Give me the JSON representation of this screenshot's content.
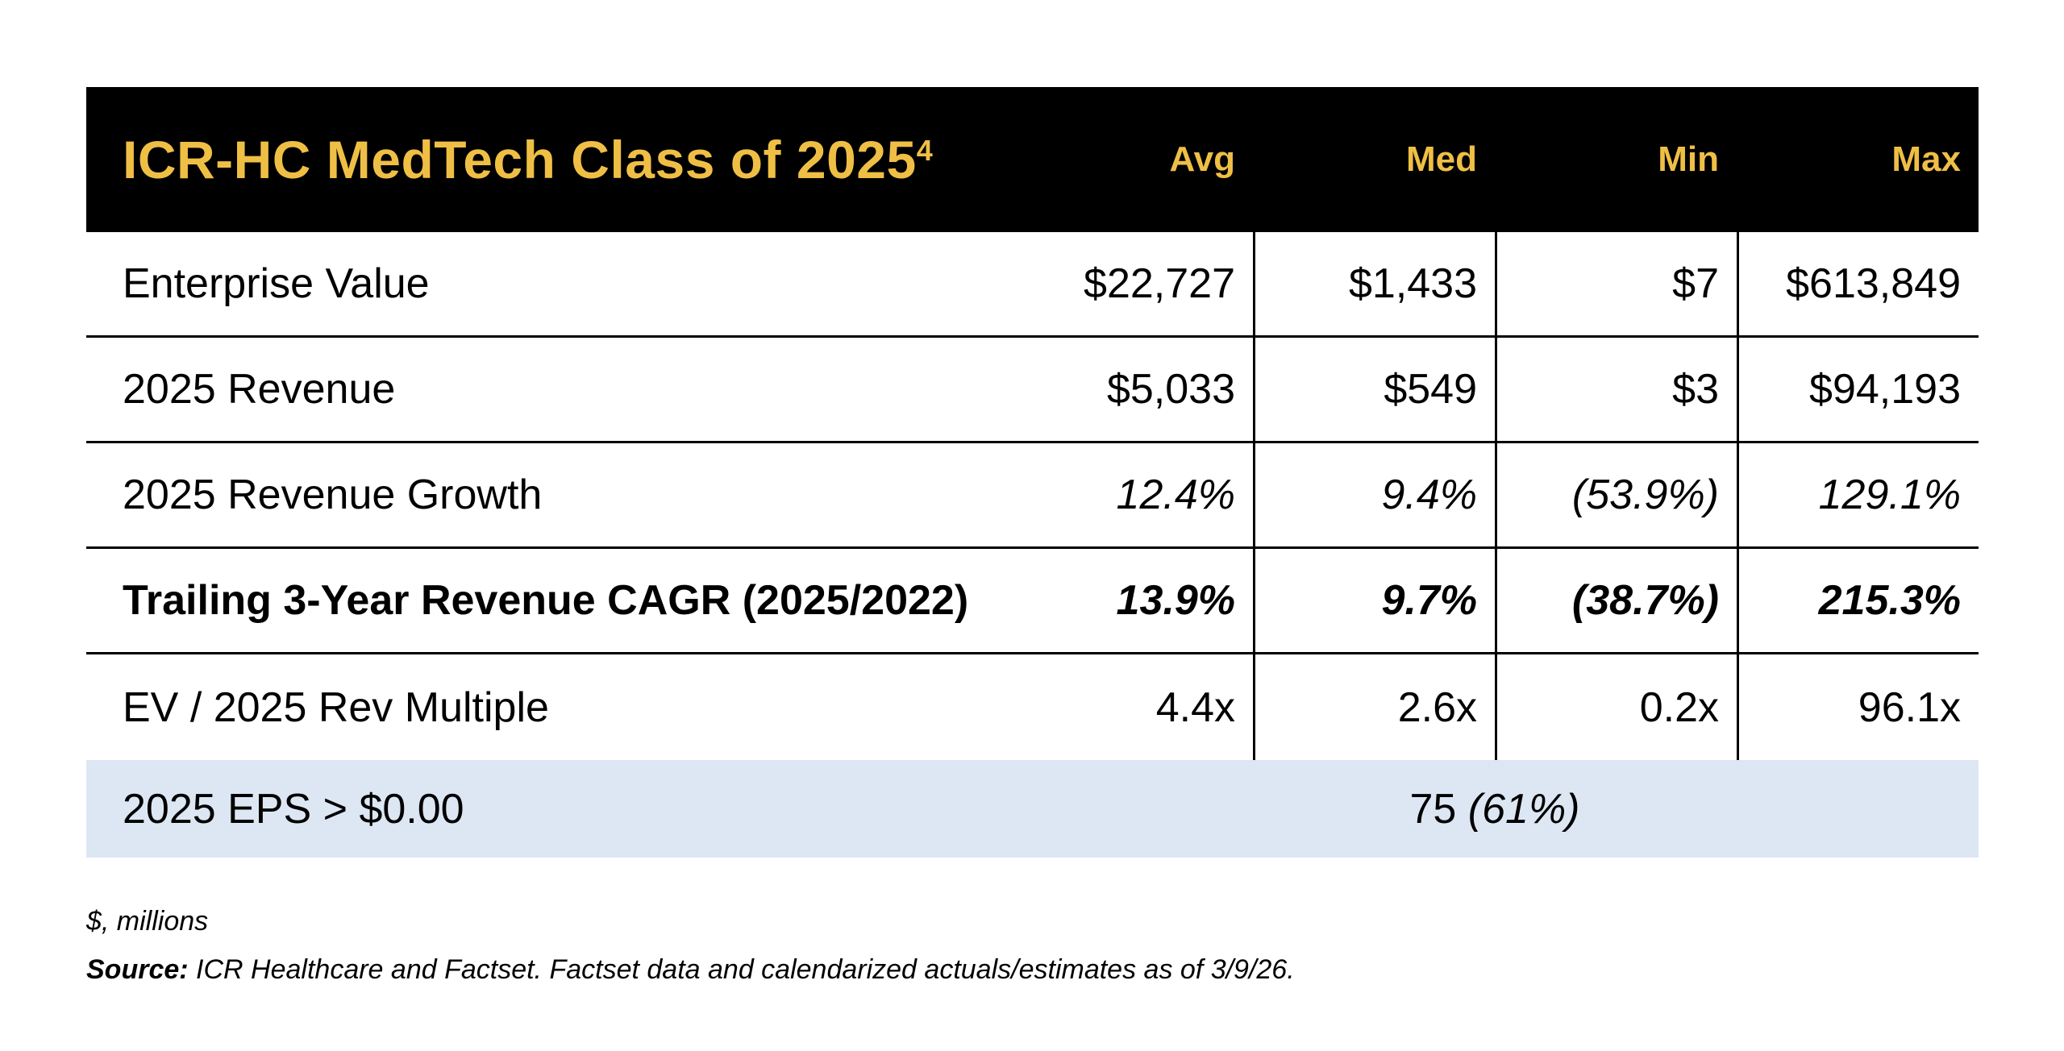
{
  "colors": {
    "page_bg": "#FFFFFF",
    "header_bg": "#000000",
    "accent_gold": "#EFBF45",
    "summary_row_bg": "#DCE7F3",
    "text": "#000000",
    "grid_line": "#000000"
  },
  "chart_data": {
    "type": "table",
    "title": "ICR-HC MedTech Class of 2025",
    "title_superscript": "4",
    "columns": [
      "Avg",
      "Med",
      "Min",
      "Max"
    ],
    "rows": [
      {
        "label": "Enterprise Value",
        "values": [
          "$22,727",
          "$1,433",
          "$7",
          "$613,849"
        ]
      },
      {
        "label": "2025 Revenue",
        "values": [
          "$5,033",
          "$549",
          "$3",
          "$94,193"
        ]
      },
      {
        "label": "2025 Revenue Growth",
        "values": [
          "12.4%",
          "9.4%",
          "(53.9%)",
          "129.1%"
        ]
      },
      {
        "label": "Trailing 3-Year Revenue CAGR (2025/2022)",
        "values": [
          "13.9%",
          "9.7%",
          "(38.7%)",
          "215.3%"
        ]
      },
      {
        "label": "EV / 2025 Rev Multiple",
        "values": [
          "4.4x",
          "2.6x",
          "0.2x",
          "96.1x"
        ]
      }
    ],
    "summary_row": {
      "label": "2025 EPS > $0.00",
      "count": "75",
      "percent": "(61%)"
    },
    "notes": {
      "units": "$, millions",
      "source_label": "Source:",
      "source_text": " ICR Healthcare and Factset. Factset data and calendarized actuals/estimates as of 3/9/26."
    }
  }
}
